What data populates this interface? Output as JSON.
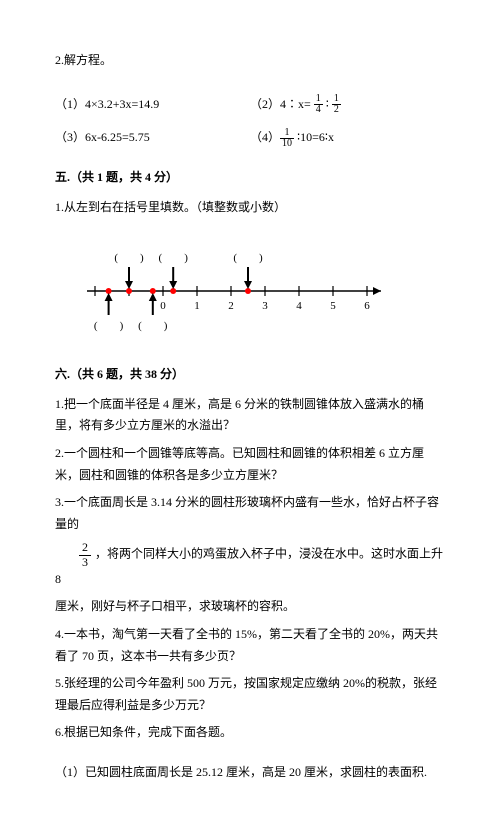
{
  "q2": {
    "title": "2.解方程。",
    "eqs": {
      "e1_label": "（1）4×3.2+3x=14.9",
      "e2_prefix": "（2）4∶x= ",
      "e2_f1_num": "1",
      "e2_f1_den": "4",
      "e2_mid": " ∶ ",
      "e2_f2_num": "1",
      "e2_f2_den": "2",
      "e3_label": "（3）6x-6.25=5.75",
      "e4_prefix": "（4）",
      "e4_f_num": "1",
      "e4_f_den": "10",
      "e4_suffix": " ∶10=6∶x"
    }
  },
  "sec5": {
    "title": "五.（共 1 题，共 4 分）",
    "q1": "1.从左到右在括号里填数。（填整数或小数）",
    "numberline": {
      "ticks": [
        -2,
        -1,
        0,
        1,
        2,
        3,
        4,
        5,
        6
      ],
      "labels": [
        {
          "x": 0,
          "text": "0"
        },
        {
          "x": 1,
          "text": "1"
        },
        {
          "x": 2,
          "text": "2"
        },
        {
          "x": 3,
          "text": "3"
        },
        {
          "x": 4,
          "text": "4"
        },
        {
          "x": 5,
          "text": "5"
        },
        {
          "x": 6,
          "text": "6"
        }
      ],
      "arrows_top": [
        -1,
        0.3,
        2.5
      ],
      "arrows_bottom": [
        -1.6,
        -0.3
      ],
      "dots": [
        -1.6,
        -1,
        -0.3,
        0.3,
        2.5
      ],
      "paren": "(　　)",
      "line_color": "#000000",
      "dot_color": "#ff0000",
      "arrow_color": "#000000"
    }
  },
  "sec6": {
    "title": "六.（共 6 题，共 38 分）",
    "q1": "1.把一个底面半径是 4 厘米，高是 6 分米的铁制圆锥体放入盛满水的桶里，将有多少立方厘米的水溢出？",
    "q2": "2.一个圆柱和一个圆锥等底等高。已知圆柱和圆锥的体积相差 6 立方厘米，圆柱和圆锥的体积各是多少立方厘米？",
    "q3a": "3.一个底面周长是 3.14 分米的圆柱形玻璃杯内盛有一些水，恰好占杯子容量的",
    "q3_frac_num": "2",
    "q3_frac_den": "3",
    "q3b": "，将两个同样大小的鸡蛋放入杯子中，浸没在水中。这时水面上升 8",
    "q3c": "厘米，刚好与杯子口相平，求玻璃杯的容积。",
    "q4": "4.一本书，淘气第一天看了全书的 15%，第二天看了全书的 20%，两天共看了 70 页，这本书一共有多少页？",
    "q5": "5.张经理的公司今年盈利 500 万元，按国家规定应缴纳 20%的税款，张经理最后应得利益是多少万元？",
    "q6": "6.根据已知条件，完成下面各题。",
    "q6_1": "（1）已知圆柱底面周长是 25.12 厘米，高是 20 厘米，求圆柱的表面积."
  }
}
